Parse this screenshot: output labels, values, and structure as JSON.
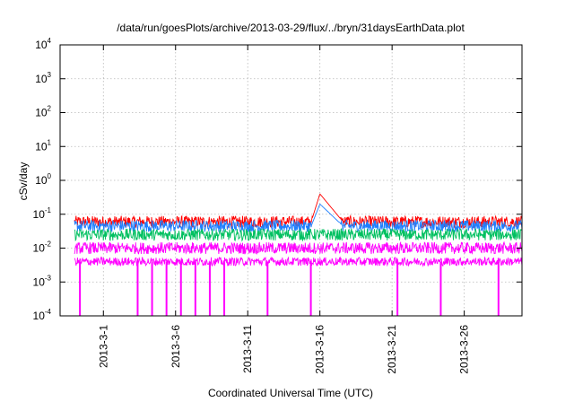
{
  "chart_data": {
    "type": "line",
    "title": "/data/run/goesPlots/archive/2013-03-29/flux/../bryn/31daysEarthData.plot",
    "xlabel": "Coordinated Universal Time (UTC)",
    "ylabel": "cSv/day",
    "yscale": "log",
    "ylim": [
      0.0001,
      10000
    ],
    "xlim": [
      "2013-02-26",
      "2013-03-30"
    ],
    "x_ticks": [
      "2013-3-1",
      "2013-3-6",
      "2013-3-11",
      "2013-3-16",
      "2013-3-21",
      "2013-3-26"
    ],
    "y_ticks": [
      {
        "base": "10",
        "exp": "-4"
      },
      {
        "base": "10",
        "exp": "-3"
      },
      {
        "base": "10",
        "exp": "-2"
      },
      {
        "base": "10",
        "exp": "-1"
      },
      {
        "base": "10",
        "exp": "0"
      },
      {
        "base": "10",
        "exp": "1"
      },
      {
        "base": "10",
        "exp": "2"
      },
      {
        "base": "10",
        "exp": "3"
      },
      {
        "base": "10",
        "exp": "4"
      }
    ],
    "grid": true,
    "legend": "none",
    "series": [
      {
        "color": "#ff0000",
        "typical_value": 0.06,
        "peak": {
          "date": "2013-03-16",
          "value": 0.4
        }
      },
      {
        "color": "#1e7fff",
        "typical_value": 0.045,
        "peak": {
          "date": "2013-03-16",
          "value": 0.2
        }
      },
      {
        "color": "#00c060",
        "typical_value": 0.025
      },
      {
        "color": "#ff00ff",
        "typical_value": 0.01,
        "low": 0.004,
        "dropout_dates": [
          "2013-02-27",
          "2013-03-03",
          "2013-03-04",
          "2013-03-05",
          "2013-03-06",
          "2013-03-07",
          "2013-03-08",
          "2013-03-09",
          "2013-03-12",
          "2013-03-15",
          "2013-03-21",
          "2013-03-24",
          "2013-03-28"
        ],
        "dropout_value": 0.0001
      }
    ]
  }
}
